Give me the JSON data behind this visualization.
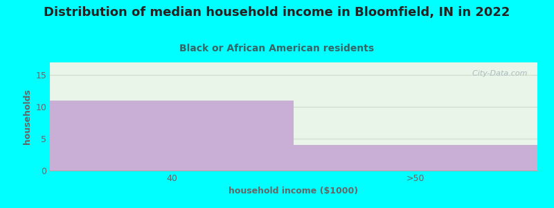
{
  "title": "Distribution of median household income in Bloomfield, IN in 2022",
  "subtitle": "Black or African American residents",
  "xlabel": "household income ($1000)",
  "ylabel": "households",
  "categories": [
    "40",
    ">50"
  ],
  "values": [
    11,
    4
  ],
  "bar_color": "#c9aed6",
  "ylim": [
    0,
    17
  ],
  "yticks": [
    0,
    5,
    10,
    15
  ],
  "bg_outer": "#00FFFF",
  "bg_plot_top": "#e8f5e8",
  "bg_plot_bottom": "#f8fff8",
  "title_fontsize": 13,
  "subtitle_fontsize": 10,
  "label_fontsize": 9,
  "tick_fontsize": 9,
  "watermark": "  City-Data.com",
  "watermark_color": "#a0b0b8",
  "title_color": "#222222",
  "subtitle_color": "#336666",
  "axis_color": "#666666",
  "grid_color": "#ccddcc"
}
